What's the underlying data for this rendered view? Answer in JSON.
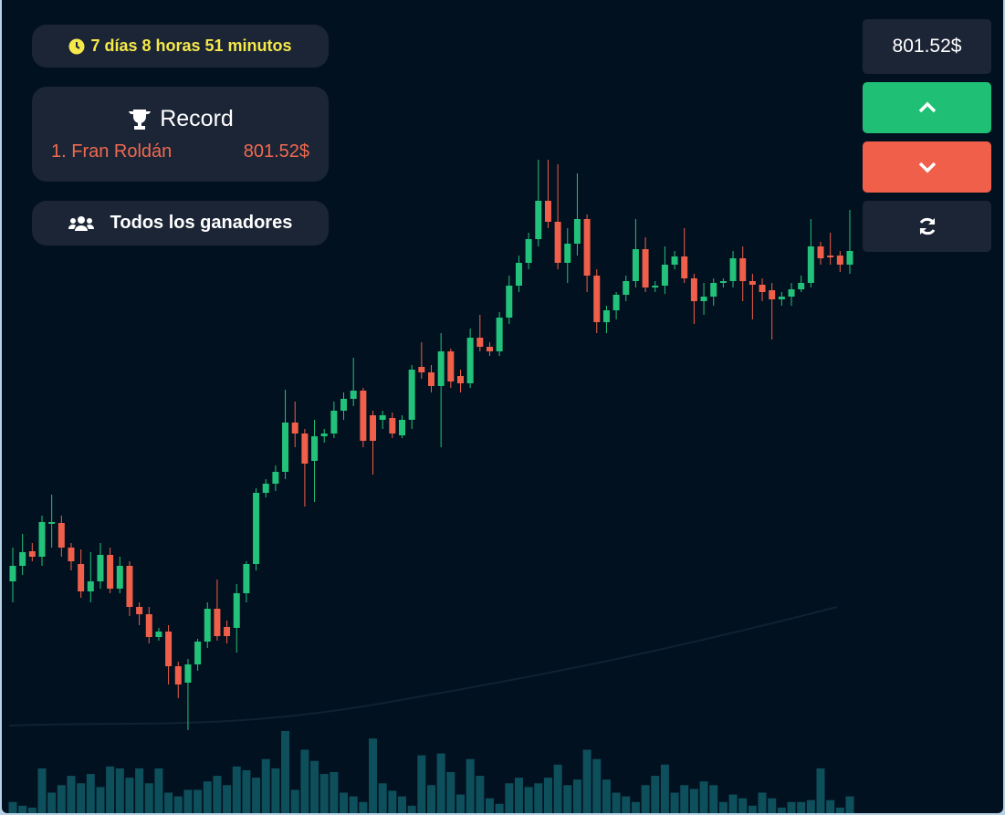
{
  "timer": {
    "text": "7 días 8 horas 51 minutos"
  },
  "record": {
    "title": "Record",
    "entries": [
      {
        "name": "1. Fran Roldán",
        "score": "801.52$"
      }
    ]
  },
  "winners_button": {
    "label": "Todos los ganadores"
  },
  "price": {
    "text": "801.52$"
  },
  "chart_data": {
    "type": "candlestick",
    "up_color": "#22c27a",
    "down_color": "#ef5f4a",
    "volume_color": "#0e4f5c",
    "open": [
      263,
      280,
      296,
      290,
      326,
      327,
      300,
      282,
      252,
      263,
      292,
      255,
      280,
      235,
      227,
      202,
      208,
      170,
      152,
      172,
      197,
      233,
      213,
      212,
      250,
      282,
      360,
      370,
      383,
      437,
      425,
      395,
      422,
      425,
      450,
      463,
      472,
      445,
      440,
      442,
      423,
      440,
      498,
      492,
      477,
      515,
      488,
      480,
      530,
      520,
      515,
      552,
      587,
      612,
      638,
      680,
      657,
      612,
      633,
      660,
      598,
      547,
      560,
      577,
      592,
      627,
      585,
      587,
      610,
      619,
      595,
      570,
      575,
      590,
      592,
      617,
      592,
      588,
      582,
      572,
      575,
      583,
      590,
      630,
      620,
      620,
      610
    ],
    "high": [
      300,
      315,
      305,
      335,
      358,
      335,
      305,
      298,
      295,
      305,
      300,
      290,
      285,
      240,
      235,
      212,
      215,
      175,
      178,
      200,
      240,
      265,
      220,
      260,
      285,
      365,
      375,
      390,
      473,
      460,
      430,
      440,
      430,
      460,
      470,
      508,
      475,
      450,
      450,
      448,
      445,
      500,
      525,
      500,
      535,
      518,
      495,
      540,
      555,
      525,
      558,
      598,
      620,
      645,
      725,
      725,
      720,
      650,
      710,
      665,
      605,
      565,
      580,
      598,
      660,
      640,
      592,
      630,
      625,
      650,
      600,
      590,
      595,
      595,
      625,
      630,
      600,
      595,
      590,
      580,
      590,
      598,
      660,
      635,
      645,
      625,
      670
    ],
    "low": [
      240,
      270,
      285,
      280,
      300,
      290,
      275,
      245,
      240,
      255,
      250,
      250,
      225,
      215,
      195,
      198,
      150,
      135,
      100,
      165,
      190,
      198,
      195,
      185,
      240,
      275,
      355,
      362,
      375,
      410,
      345,
      350,
      415,
      420,
      440,
      455,
      410,
      380,
      430,
      420,
      420,
      430,
      485,
      470,
      410,
      475,
      470,
      475,
      515,
      510,
      510,
      545,
      580,
      605,
      630,
      650,
      605,
      590,
      620,
      580,
      535,
      535,
      550,
      570,
      585,
      580,
      580,
      578,
      605,
      590,
      545,
      555,
      565,
      585,
      585,
      570,
      550,
      570,
      528,
      565,
      565,
      580,
      585,
      610,
      610,
      602,
      600
    ],
    "close": [
      280,
      295,
      290,
      328,
      328,
      300,
      285,
      252,
      263,
      292,
      255,
      280,
      235,
      227,
      202,
      208,
      170,
      150,
      172,
      197,
      233,
      203,
      203,
      250,
      282,
      360,
      370,
      383,
      437,
      425,
      392,
      422,
      425,
      450,
      463,
      472,
      417,
      417,
      445,
      425,
      440,
      495,
      492,
      477,
      515,
      482,
      480,
      530,
      520,
      515,
      552,
      587,
      612,
      638,
      680,
      657,
      612,
      633,
      660,
      598,
      547,
      560,
      577,
      592,
      627,
      585,
      587,
      610,
      619,
      595,
      570,
      575,
      590,
      592,
      617,
      592,
      588,
      580,
      572,
      575,
      583,
      590,
      630,
      617,
      618,
      610,
      625
    ],
    "volume": [
      12,
      8,
      6,
      48,
      22,
      30,
      40,
      32,
      42,
      28,
      50,
      48,
      38,
      48,
      32,
      48,
      22,
      18,
      25,
      25,
      34,
      40,
      30,
      50,
      46,
      38,
      58,
      48,
      88,
      25,
      68,
      56,
      42,
      44,
      22,
      18,
      12,
      80,
      32,
      24,
      18,
      8,
      62,
      30,
      64,
      44,
      20,
      58,
      40,
      16,
      10,
      32,
      38,
      28,
      32,
      38,
      52,
      30,
      36,
      68,
      58,
      36,
      22,
      18,
      12,
      30,
      40,
      52,
      22,
      30,
      26,
      34,
      30,
      12,
      20,
      16,
      8,
      22,
      16,
      6,
      12,
      12,
      14,
      48,
      14,
      6,
      18
    ]
  }
}
